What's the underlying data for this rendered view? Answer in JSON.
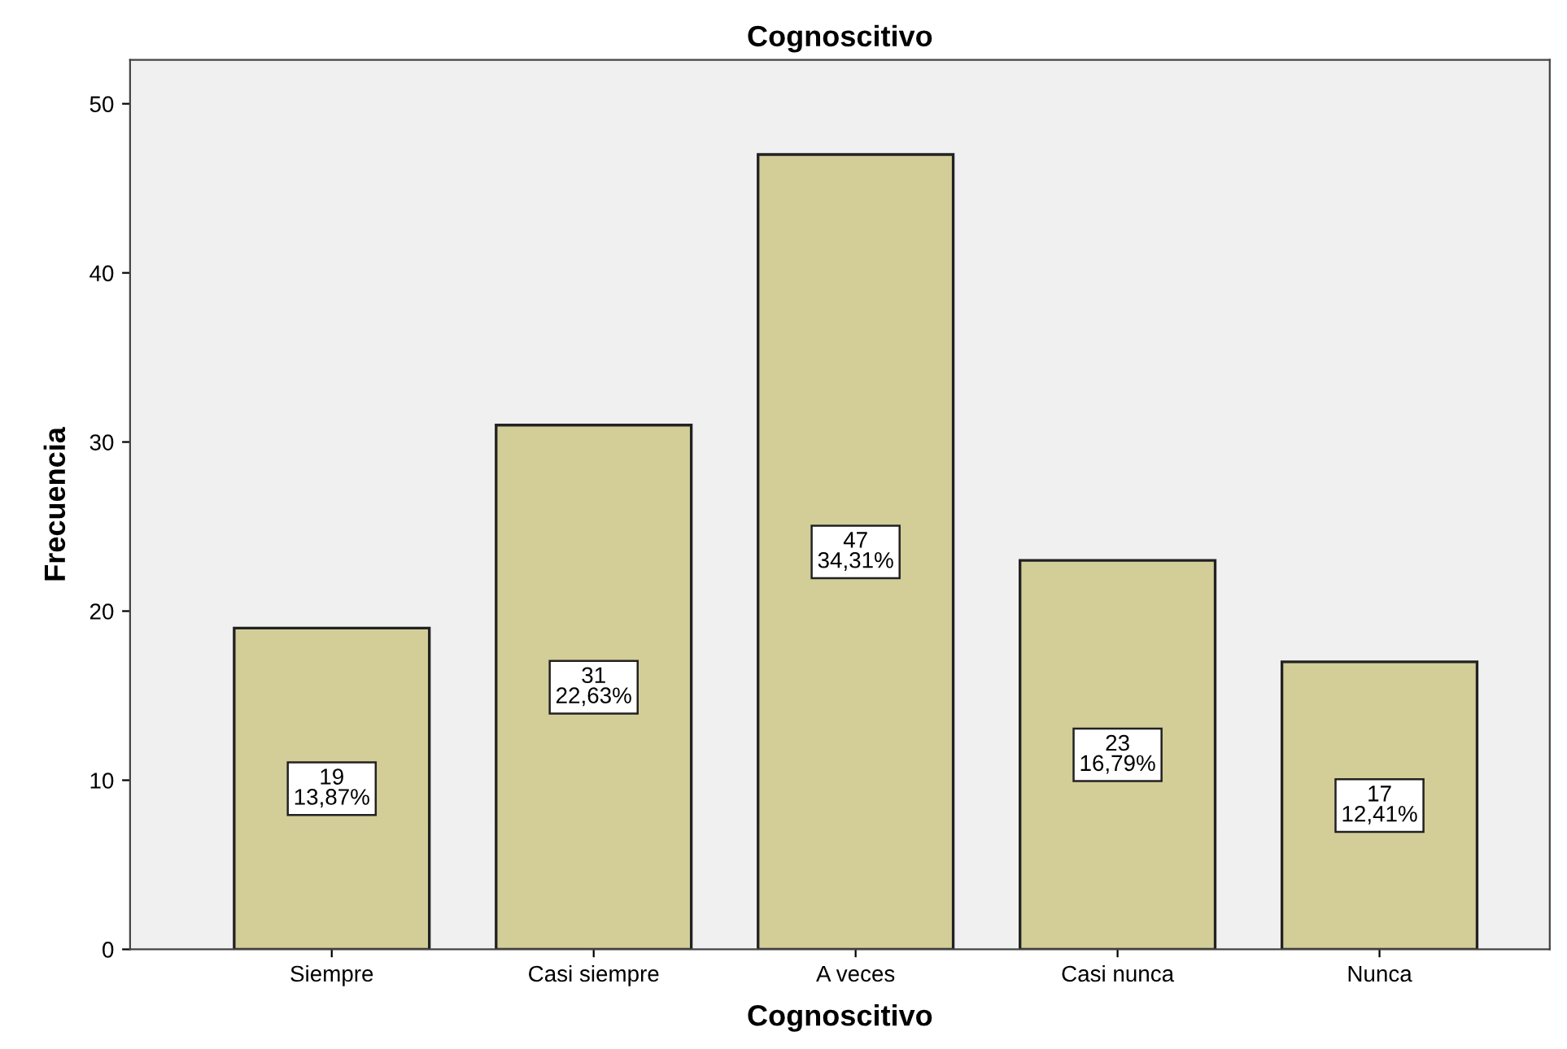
{
  "chart_data": {
    "type": "bar",
    "title": "Cognoscitivo",
    "xlabel": "Cognoscitivo",
    "ylabel": "Frecuencia",
    "categories": [
      "Siempre",
      "Casi siempre",
      "A veces",
      "Casi nunca",
      "Nunca"
    ],
    "values": [
      19,
      31,
      47,
      23,
      17
    ],
    "value_labels": [
      "19\n13,87%",
      "31\n22,63%",
      "47\n34,31%",
      "23\n16,79%",
      "17\n12,41%"
    ],
    "color": "#d3ce98",
    "ylim": [
      0,
      52.6
    ],
    "yticks": [
      0,
      10,
      20,
      30,
      40,
      50
    ],
    "grid": false,
    "legend": false
  }
}
